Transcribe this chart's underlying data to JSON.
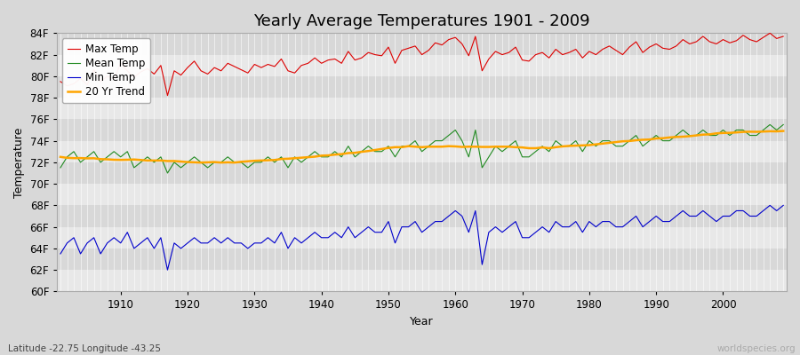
{
  "title": "Yearly Average Temperatures 1901 - 2009",
  "xlabel": "Year",
  "ylabel": "Temperature",
  "lat_lon_label": "Latitude -22.75 Longitude -43.25",
  "watermark": "worldspecies.org",
  "years": [
    1901,
    1902,
    1903,
    1904,
    1905,
    1906,
    1907,
    1908,
    1909,
    1910,
    1911,
    1912,
    1913,
    1914,
    1915,
    1916,
    1917,
    1918,
    1919,
    1920,
    1921,
    1922,
    1923,
    1924,
    1925,
    1926,
    1927,
    1928,
    1929,
    1930,
    1931,
    1932,
    1933,
    1934,
    1935,
    1936,
    1937,
    1938,
    1939,
    1940,
    1941,
    1942,
    1943,
    1944,
    1945,
    1946,
    1947,
    1948,
    1949,
    1950,
    1951,
    1952,
    1953,
    1954,
    1955,
    1956,
    1957,
    1958,
    1959,
    1960,
    1961,
    1962,
    1963,
    1964,
    1965,
    1966,
    1967,
    1968,
    1969,
    1970,
    1971,
    1972,
    1973,
    1974,
    1975,
    1976,
    1977,
    1978,
    1979,
    1980,
    1981,
    1982,
    1983,
    1984,
    1985,
    1986,
    1987,
    1988,
    1989,
    1990,
    1991,
    1992,
    1993,
    1994,
    1995,
    1996,
    1997,
    1998,
    1999,
    2000,
    2001,
    2002,
    2003,
    2004,
    2005,
    2006,
    2007,
    2008,
    2009
  ],
  "max_temp": [
    79.5,
    79.1,
    79.3,
    79.8,
    79.2,
    80.6,
    79.5,
    80.0,
    79.7,
    81.2,
    80.5,
    79.9,
    80.4,
    80.7,
    80.2,
    81.0,
    78.2,
    80.5,
    80.1,
    80.8,
    81.4,
    80.5,
    80.2,
    80.8,
    80.5,
    81.2,
    80.9,
    80.6,
    80.3,
    81.1,
    80.8,
    81.1,
    80.9,
    81.6,
    80.5,
    80.3,
    81.0,
    81.2,
    81.7,
    81.2,
    81.5,
    81.6,
    81.2,
    82.3,
    81.5,
    81.7,
    82.2,
    82.0,
    81.9,
    82.7,
    81.2,
    82.4,
    82.6,
    82.8,
    82.0,
    82.4,
    83.1,
    82.9,
    83.4,
    83.6,
    83.0,
    81.9,
    83.7,
    80.5,
    81.6,
    82.3,
    82.0,
    82.2,
    82.7,
    81.5,
    81.4,
    82.0,
    82.2,
    81.7,
    82.5,
    82.0,
    82.2,
    82.5,
    81.7,
    82.3,
    82.0,
    82.5,
    82.8,
    82.4,
    82.0,
    82.7,
    83.2,
    82.2,
    82.7,
    83.0,
    82.6,
    82.5,
    82.8,
    83.4,
    83.0,
    83.2,
    83.7,
    83.2,
    83.0,
    83.4,
    83.1,
    83.3,
    83.8,
    83.4,
    83.2,
    83.6,
    84.0,
    83.5,
    83.7
  ],
  "mean_temp": [
    71.5,
    72.5,
    73.0,
    72.0,
    72.5,
    73.0,
    72.0,
    72.5,
    73.0,
    72.5,
    73.0,
    71.5,
    72.0,
    72.5,
    72.0,
    72.5,
    71.0,
    72.0,
    71.5,
    72.0,
    72.5,
    72.0,
    71.5,
    72.0,
    72.0,
    72.5,
    72.0,
    72.0,
    71.5,
    72.0,
    72.0,
    72.5,
    72.0,
    72.5,
    71.5,
    72.5,
    72.0,
    72.5,
    73.0,
    72.5,
    72.5,
    73.0,
    72.5,
    73.5,
    72.5,
    73.0,
    73.5,
    73.0,
    73.0,
    73.5,
    72.5,
    73.5,
    73.5,
    74.0,
    73.0,
    73.5,
    74.0,
    74.0,
    74.5,
    75.0,
    74.0,
    72.5,
    75.0,
    71.5,
    72.5,
    73.5,
    73.0,
    73.5,
    74.0,
    72.5,
    72.5,
    73.0,
    73.5,
    73.0,
    74.0,
    73.5,
    73.5,
    74.0,
    73.0,
    74.0,
    73.5,
    74.0,
    74.0,
    73.5,
    73.5,
    74.0,
    74.5,
    73.5,
    74.0,
    74.5,
    74.0,
    74.0,
    74.5,
    75.0,
    74.5,
    74.5,
    75.0,
    74.5,
    74.5,
    75.0,
    74.5,
    75.0,
    75.0,
    74.5,
    74.5,
    75.0,
    75.5,
    75.0,
    75.5
  ],
  "min_temp": [
    63.5,
    64.5,
    65.0,
    63.5,
    64.5,
    65.0,
    63.5,
    64.5,
    65.0,
    64.5,
    65.5,
    64.0,
    64.5,
    65.0,
    64.0,
    65.0,
    62.0,
    64.5,
    64.0,
    64.5,
    65.0,
    64.5,
    64.5,
    65.0,
    64.5,
    65.0,
    64.5,
    64.5,
    64.0,
    64.5,
    64.5,
    65.0,
    64.5,
    65.5,
    64.0,
    65.0,
    64.5,
    65.0,
    65.5,
    65.0,
    65.0,
    65.5,
    65.0,
    66.0,
    65.0,
    65.5,
    66.0,
    65.5,
    65.5,
    66.5,
    64.5,
    66.0,
    66.0,
    66.5,
    65.5,
    66.0,
    66.5,
    66.5,
    67.0,
    67.5,
    67.0,
    65.5,
    67.5,
    62.5,
    65.5,
    66.0,
    65.5,
    66.0,
    66.5,
    65.0,
    65.0,
    65.5,
    66.0,
    65.5,
    66.5,
    66.0,
    66.0,
    66.5,
    65.5,
    66.5,
    66.0,
    66.5,
    66.5,
    66.0,
    66.0,
    66.5,
    67.0,
    66.0,
    66.5,
    67.0,
    66.5,
    66.5,
    67.0,
    67.5,
    67.0,
    67.0,
    67.5,
    67.0,
    66.5,
    67.0,
    67.0,
    67.5,
    67.5,
    67.0,
    67.0,
    67.5,
    68.0,
    67.5,
    68.0
  ],
  "ylim_min": 60,
  "ylim_max": 84,
  "yticks": [
    60,
    62,
    64,
    66,
    68,
    70,
    72,
    74,
    76,
    78,
    80,
    82,
    84
  ],
  "xticks": [
    1910,
    1920,
    1930,
    1940,
    1950,
    1960,
    1970,
    1980,
    1990,
    2000
  ],
  "max_color": "#dd0000",
  "mean_color": "#228B22",
  "min_color": "#0000cc",
  "trend_color": "#FFA500",
  "bg_color": "#d8d8d8",
  "plot_bg_color_light": "#e8e8e8",
  "plot_bg_color_dark": "#d8d8d8",
  "grid_color": "#ffffff",
  "title_fontsize": 13,
  "axis_label_fontsize": 9,
  "tick_label_fontsize": 8.5,
  "legend_fontsize": 8.5,
  "trend_window": 20
}
